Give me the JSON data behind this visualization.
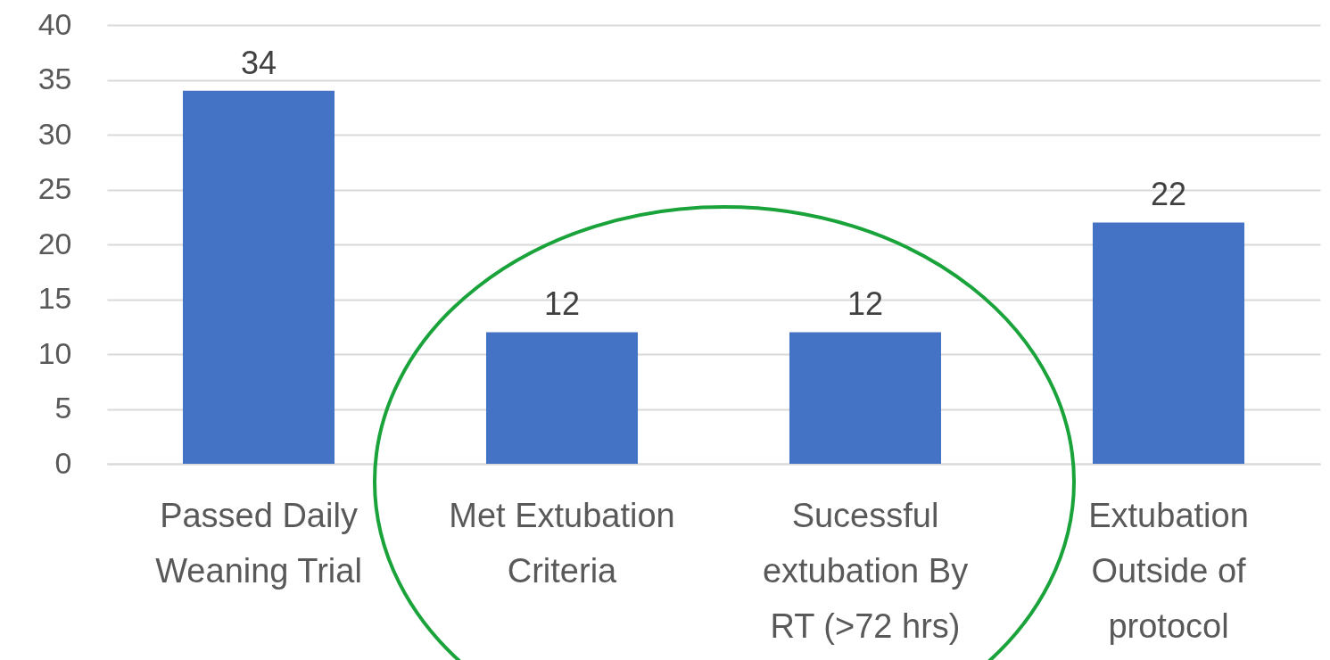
{
  "chart_data": {
    "type": "bar",
    "categories": [
      "Passed Daily Weaning Trial",
      "Met Extubation Criteria",
      "Sucessful extubation By RT (>72 hrs)",
      "Extubation Outside of protocol"
    ],
    "values": [
      34,
      12,
      12,
      22
    ],
    "color": "#4472c4",
    "ylim": [
      0,
      40
    ],
    "yticks": [
      0,
      5,
      10,
      15,
      20,
      25,
      30,
      35,
      40
    ],
    "grid": "y",
    "data_labels": true
  }
}
